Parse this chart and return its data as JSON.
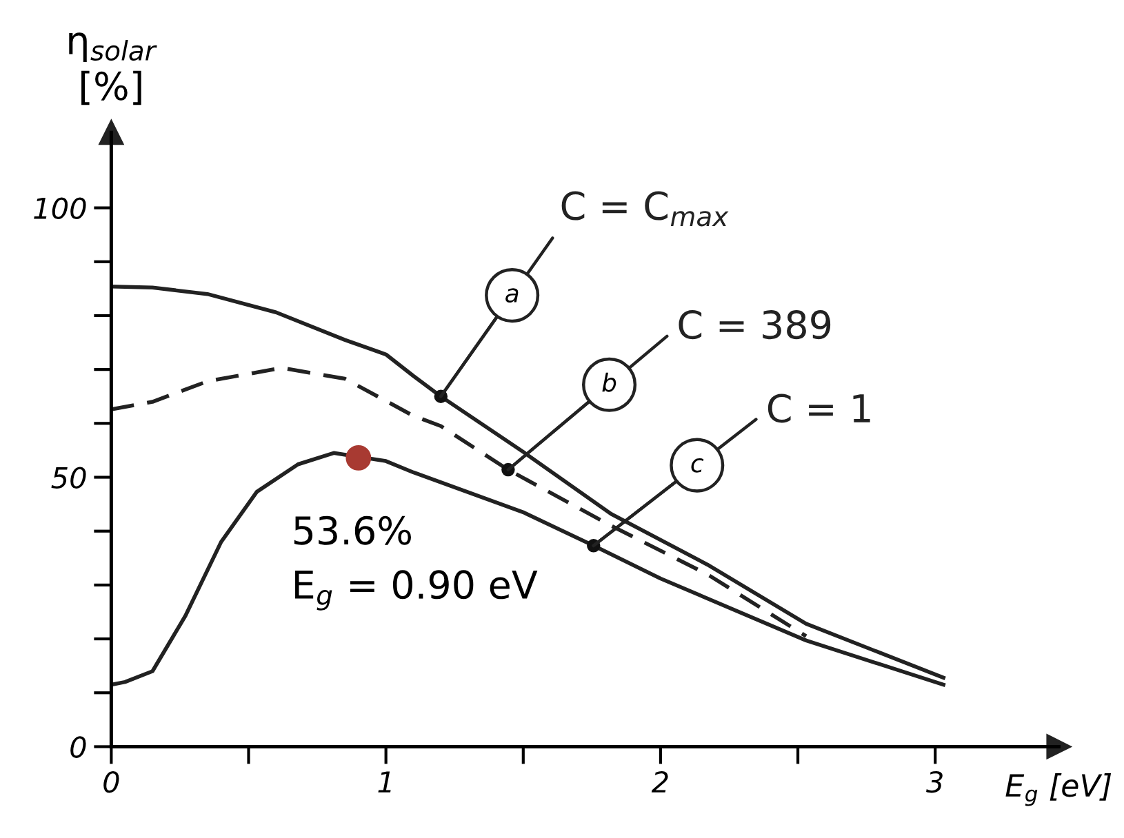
{
  "chart_data": {
    "type": "line",
    "ylabel": "η$_{solar}$\n[%]",
    "xlabel": "E$_{g}$ [eV]",
    "series": [
      {
        "name": "C = C$_{max}$",
        "color": "#222222",
        "line_style": "solid",
        "x": [
          0,
          0.15,
          0.35,
          0.6,
          0.85,
          1.0,
          1.1,
          1.2,
          1.5,
          1.82,
          2.17,
          2.53,
          3.03
        ],
        "values": [
          85.4,
          85.2,
          84,
          80.6,
          75.5,
          72.8,
          68.8,
          65,
          54.7,
          43.2,
          33.8,
          22.8,
          12.8
        ]
      },
      {
        "name": "C = 389",
        "color": "#222222",
        "line_style": "dashed",
        "x": [
          0,
          0.15,
          0.35,
          0.62,
          0.85,
          1.1,
          1.2,
          1.445,
          1.82,
          2.17,
          2.53
        ],
        "values": [
          62.6,
          64,
          67.8,
          70.3,
          68.3,
          61.4,
          59.5,
          51.4,
          41,
          32,
          20.5
        ]
      },
      {
        "name": "C = 1",
        "color": "#222222",
        "line_style": "solid",
        "x": [
          0,
          0.05,
          0.15,
          0.27,
          0.4,
          0.53,
          0.68,
          0.81,
          1.0,
          1.1,
          1.5,
          1.756,
          2.0,
          2.53,
          3.03
        ],
        "values": [
          11.5,
          12,
          14,
          24.3,
          38,
          47.3,
          52.4,
          54.5,
          53,
          50.9,
          43.5,
          37.3,
          31.2,
          19.7,
          11.5
        ]
      },
      {
        "type": "scatter",
        "color": "#a83a32",
        "marker": "circle",
        "x": [
          0.9
        ],
        "values": [
          53.6
        ]
      }
    ],
    "annotations": [
      {
        "text": "a",
        "x": 1.2,
        "y": 65
      },
      {
        "text": "b",
        "x": 1.445,
        "y": 51.4
      },
      {
        "text": "c",
        "x": 1.756,
        "y": 37.3
      },
      {
        "text": "53.6%\nE$_{g}$ = 0.90 eV",
        "x": 0.9,
        "y": 53.6
      }
    ],
    "xlim": [
      0,
      3.45
    ],
    "ylim": [
      0,
      114
    ],
    "xticks": [
      0,
      {
        "value": 0.5,
        "label": null
      },
      1,
      {
        "value": 1.5,
        "label": null
      },
      2,
      {
        "value": 2.5,
        "label": null
      },
      3
    ],
    "yticks": [
      0,
      {
        "value": 10,
        "label": null
      },
      {
        "value": 20,
        "label": null
      },
      {
        "value": 30,
        "label": null
      },
      {
        "value": 40,
        "label": null
      },
      50,
      {
        "value": 60,
        "label": null
      },
      {
        "value": 70,
        "label": null
      },
      {
        "value": 80,
        "label": null
      },
      {
        "value": 90,
        "label": null
      },
      100
    ],
    "grid": false
  }
}
